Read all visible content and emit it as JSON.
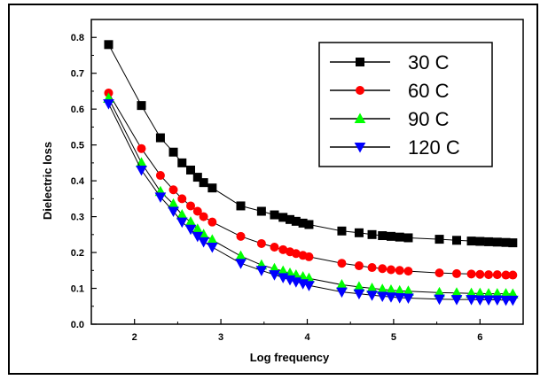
{
  "chart_data": {
    "type": "line",
    "title": "",
    "xlabel": "Log frequency",
    "ylabel": "Dielectric loss",
    "xlim": [
      1.5,
      6.5
    ],
    "ylim": [
      0.0,
      0.85
    ],
    "xticks": [
      2,
      3,
      4,
      5,
      6
    ],
    "yticks": [
      0.0,
      0.1,
      0.2,
      0.3,
      0.4,
      0.5,
      0.6,
      0.7,
      0.8
    ],
    "x": [
      1.7,
      2.08,
      2.3,
      2.45,
      2.55,
      2.65,
      2.73,
      2.8,
      2.9,
      3.23,
      3.47,
      3.62,
      3.72,
      3.8,
      3.87,
      3.95,
      4.02,
      4.4,
      4.6,
      4.75,
      4.87,
      4.97,
      5.07,
      5.17,
      5.53,
      5.73,
      5.9,
      6.0,
      6.1,
      6.2,
      6.3,
      6.38
    ],
    "legend_position": "top-right",
    "series": [
      {
        "name": "30 C",
        "color": "#000000",
        "marker": "square",
        "values": [
          0.78,
          0.61,
          0.52,
          0.48,
          0.45,
          0.43,
          0.41,
          0.395,
          0.38,
          0.33,
          0.315,
          0.305,
          0.298,
          0.292,
          0.287,
          0.282,
          0.278,
          0.26,
          0.255,
          0.25,
          0.247,
          0.245,
          0.243,
          0.241,
          0.237,
          0.234,
          0.232,
          0.231,
          0.23,
          0.229,
          0.228,
          0.227
        ]
      },
      {
        "name": "60 C",
        "color": "#ff0000",
        "marker": "circle",
        "values": [
          0.645,
          0.49,
          0.415,
          0.375,
          0.35,
          0.33,
          0.315,
          0.3,
          0.285,
          0.245,
          0.225,
          0.215,
          0.208,
          0.202,
          0.197,
          0.192,
          0.188,
          0.17,
          0.163,
          0.158,
          0.155,
          0.152,
          0.15,
          0.148,
          0.143,
          0.141,
          0.14,
          0.139,
          0.138,
          0.138,
          0.137,
          0.137
        ]
      },
      {
        "name": "90 C",
        "color": "#00ff00",
        "marker": "triangle-up",
        "values": [
          0.63,
          0.45,
          0.37,
          0.335,
          0.305,
          0.285,
          0.265,
          0.25,
          0.235,
          0.19,
          0.165,
          0.155,
          0.148,
          0.142,
          0.137,
          0.132,
          0.128,
          0.11,
          0.104,
          0.1,
          0.097,
          0.095,
          0.093,
          0.092,
          0.088,
          0.087,
          0.086,
          0.086,
          0.085,
          0.085,
          0.085,
          0.084
        ]
      },
      {
        "name": "120 C",
        "color": "#0000ff",
        "marker": "triangle-down",
        "values": [
          0.615,
          0.43,
          0.355,
          0.315,
          0.285,
          0.265,
          0.245,
          0.23,
          0.215,
          0.17,
          0.15,
          0.138,
          0.13,
          0.124,
          0.118,
          0.113,
          0.108,
          0.09,
          0.085,
          0.081,
          0.078,
          0.076,
          0.074,
          0.073,
          0.07,
          0.069,
          0.069,
          0.068,
          0.068,
          0.068,
          0.067,
          0.067
        ]
      }
    ]
  }
}
